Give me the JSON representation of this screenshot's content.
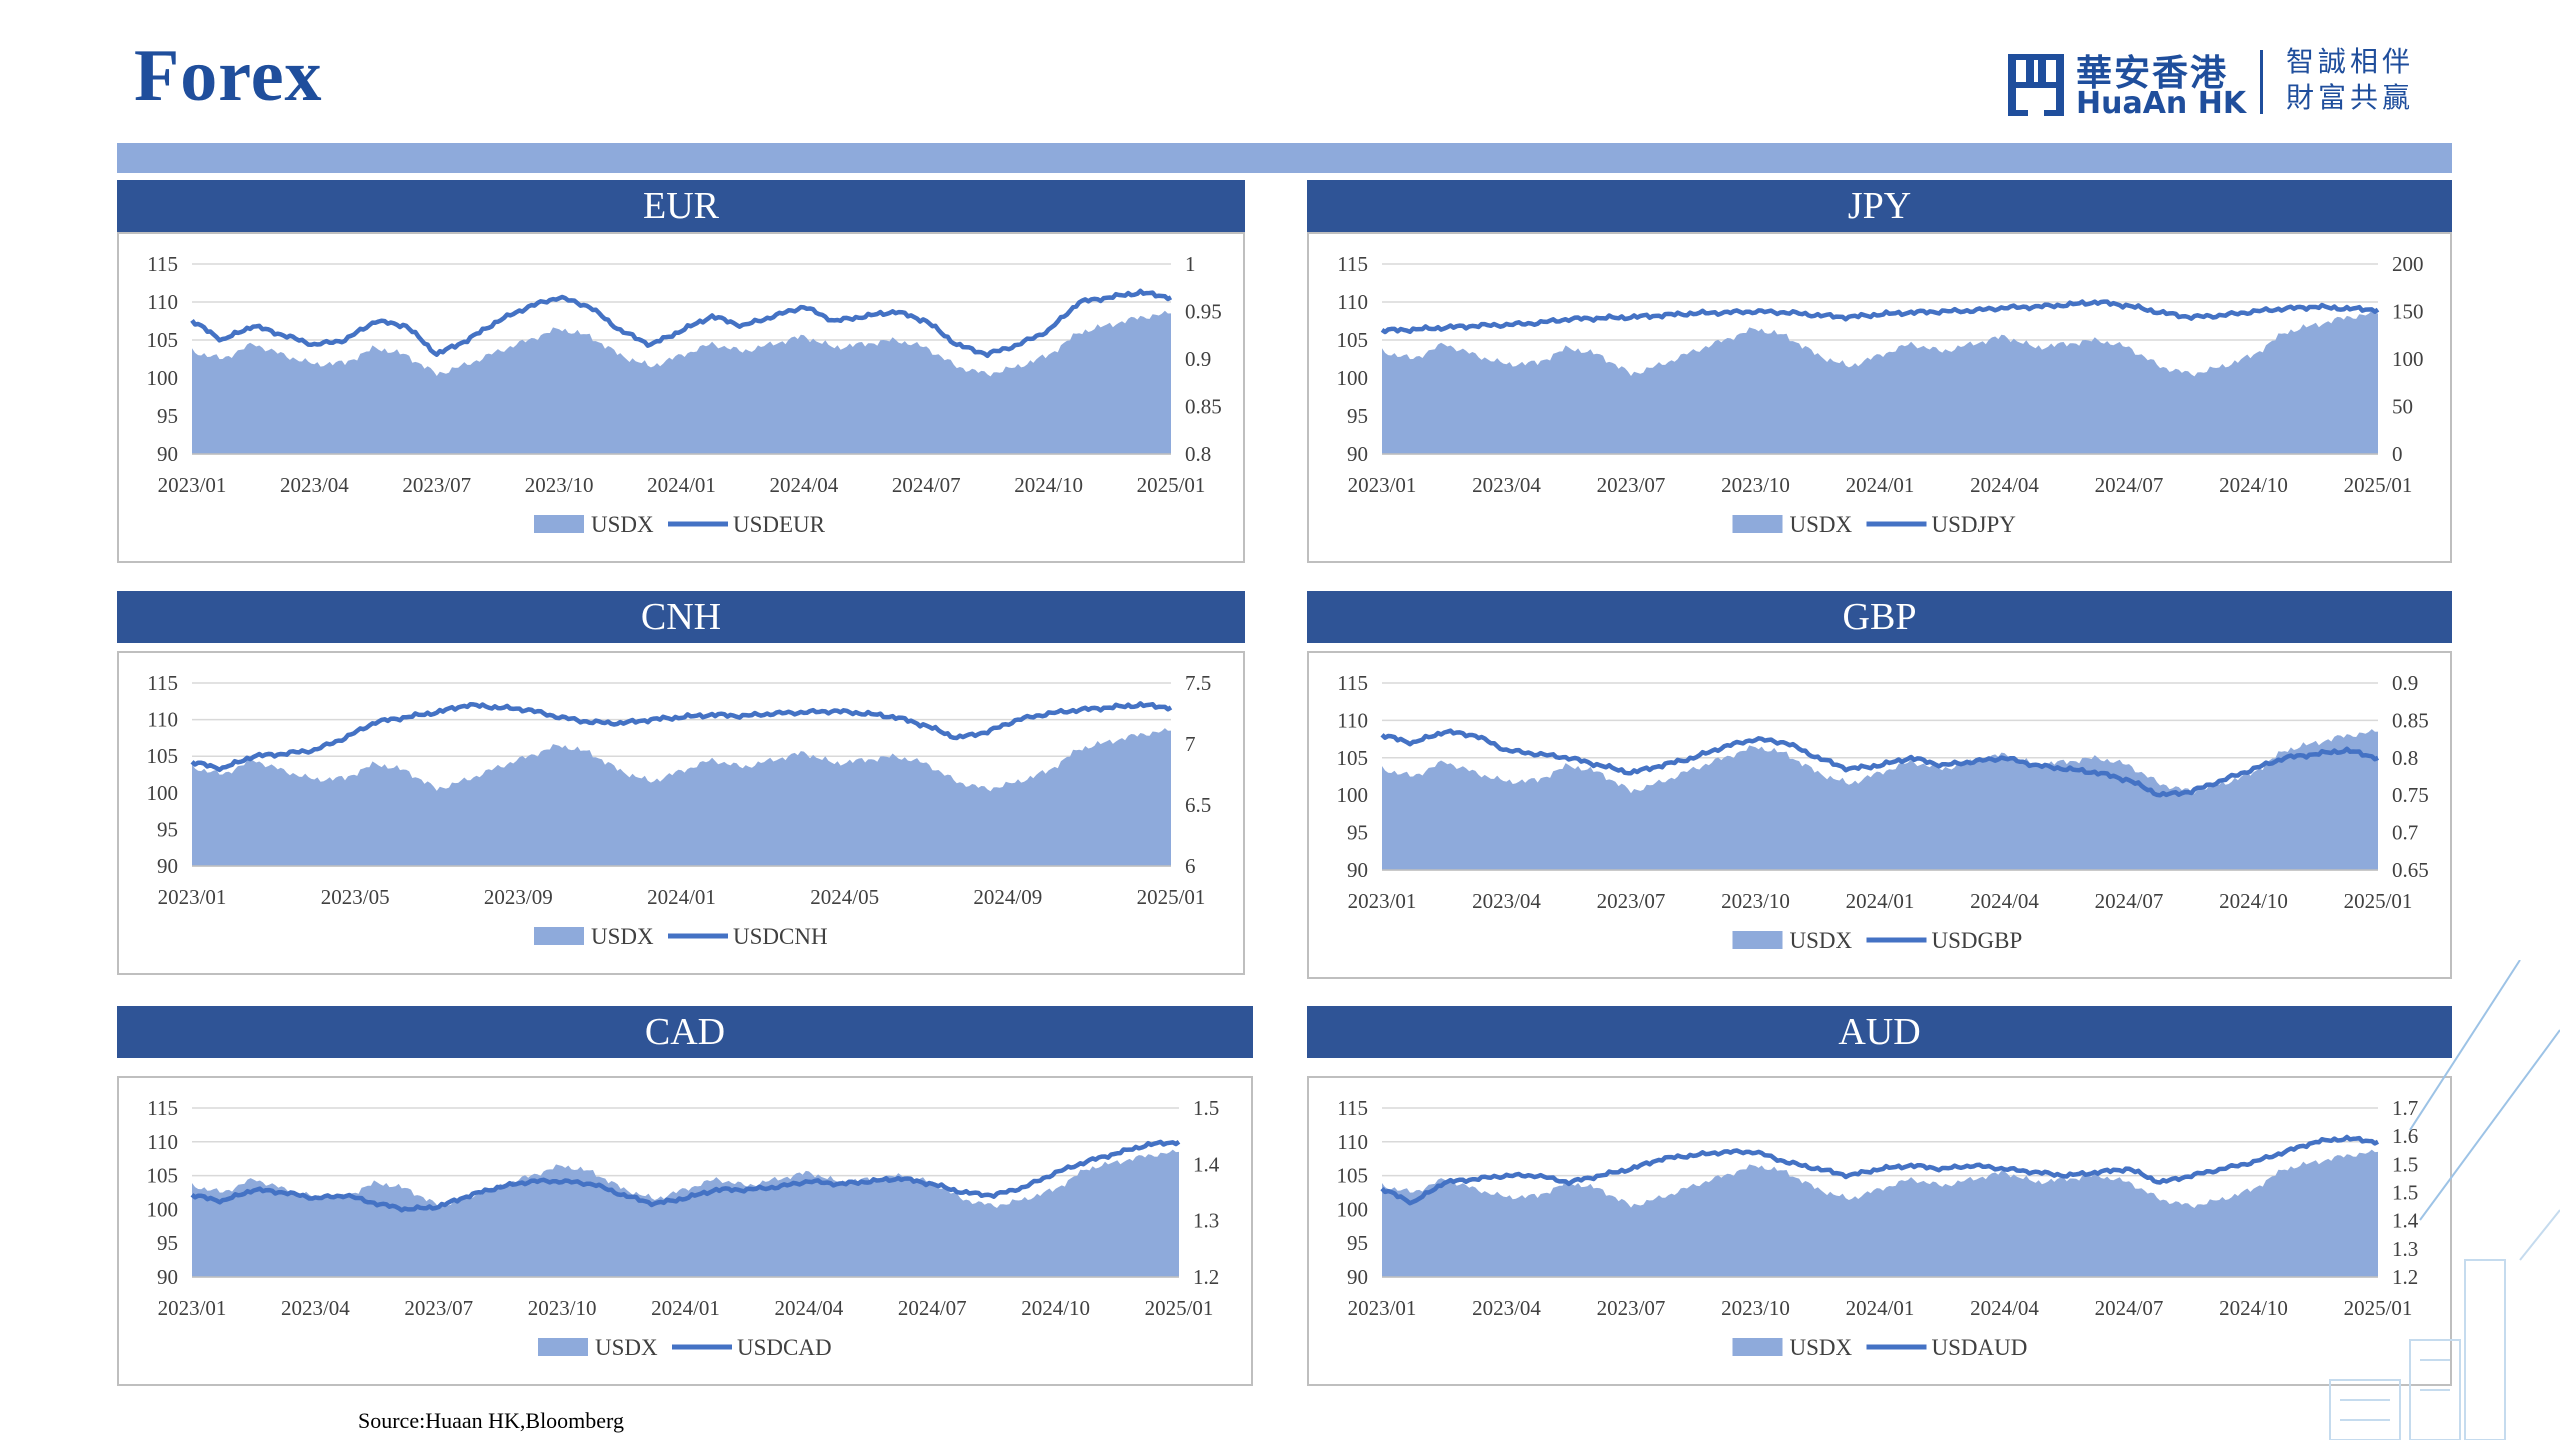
{
  "page": {
    "title": "Forex",
    "source": "Source:Huaan HK,Bloomberg"
  },
  "logo": {
    "chinese": "華安香港",
    "english": "HuaAn HK",
    "slogan_line1": "智誠相伴",
    "slogan_line2": "財富共贏",
    "icon": "huaan-logo-icon"
  },
  "colors": {
    "header": "#2f5496",
    "area": "#8eaadb",
    "line": "#4472c4",
    "title": "#1f4e9c",
    "topbar": "#8eaadb"
  },
  "chart_data": [
    {
      "id": "eur",
      "type": "area+line",
      "title": "EUR",
      "x_ticks": [
        "2023/01",
        "2023/04",
        "2023/07",
        "2023/10",
        "2024/01",
        "2024/04",
        "2024/07",
        "2024/10",
        "2025/01"
      ],
      "left_axis": {
        "ylim": [
          90,
          115
        ],
        "ticks": [
          90,
          95,
          100,
          105,
          110,
          115
        ]
      },
      "right_axis": {
        "ylim": [
          0.8,
          1
        ],
        "ticks": [
          "0.8",
          "0.85",
          "0.9",
          "0.95",
          "1"
        ]
      },
      "series": [
        {
          "name": "USDX",
          "kind": "area",
          "axis": "left",
          "values": [
            103.5,
            102.5,
            104.5,
            103.0,
            101.8,
            102.0,
            104.0,
            103.0,
            100.5,
            101.8,
            103.5,
            105.0,
            106.5,
            105.5,
            103.0,
            101.5,
            103.0,
            104.5,
            103.5,
            104.5,
            105.5,
            104.0,
            104.5,
            105.0,
            104.0,
            101.5,
            100.5,
            101.5,
            103.0,
            106.0,
            107.0,
            108.0,
            108.5
          ]
        },
        {
          "name": "USDEUR",
          "kind": "line",
          "axis": "right",
          "values": [
            0.94,
            0.92,
            0.935,
            0.925,
            0.915,
            0.92,
            0.94,
            0.935,
            0.905,
            0.92,
            0.94,
            0.955,
            0.965,
            0.955,
            0.93,
            0.915,
            0.93,
            0.945,
            0.935,
            0.945,
            0.955,
            0.94,
            0.945,
            0.95,
            0.94,
            0.915,
            0.905,
            0.915,
            0.93,
            0.96,
            0.965,
            0.97,
            0.965
          ]
        }
      ]
    },
    {
      "id": "jpy",
      "type": "area+line",
      "title": "JPY",
      "x_ticks": [
        "2023/01",
        "2023/04",
        "2023/07",
        "2023/10",
        "2024/01",
        "2024/04",
        "2024/07",
        "2024/10",
        "2025/01"
      ],
      "left_axis": {
        "ylim": [
          90,
          115
        ],
        "ticks": [
          90,
          95,
          100,
          105,
          110,
          115
        ]
      },
      "right_axis": {
        "ylim": [
          0,
          200
        ],
        "ticks": [
          "0",
          "50",
          "100",
          "150",
          "200"
        ]
      },
      "series": [
        {
          "name": "USDX",
          "kind": "area",
          "axis": "left",
          "values": [
            103.5,
            102.5,
            104.5,
            103.0,
            101.8,
            102.0,
            104.0,
            103.0,
            100.5,
            101.8,
            103.5,
            105.0,
            106.5,
            105.5,
            103.0,
            101.5,
            103.0,
            104.5,
            103.5,
            104.5,
            105.5,
            104.0,
            104.5,
            105.0,
            104.0,
            101.5,
            100.5,
            101.5,
            103.0,
            106.0,
            107.0,
            108.0,
            108.5
          ]
        },
        {
          "name": "USDJPY",
          "kind": "line",
          "axis": "right",
          "values": [
            130,
            131,
            133,
            135,
            136,
            138,
            142,
            143,
            144,
            146,
            148,
            149,
            150,
            149,
            146,
            144,
            147,
            149,
            150,
            151,
            154,
            155,
            157,
            160,
            156,
            149,
            144,
            146,
            150,
            153,
            155,
            153,
            152
          ]
        }
      ]
    },
    {
      "id": "cnh",
      "type": "area+line",
      "title": "CNH",
      "x_ticks": [
        "2023/01",
        "2023/05",
        "2023/09",
        "2024/01",
        "2024/05",
        "2024/09",
        "2025/01"
      ],
      "left_axis": {
        "ylim": [
          90,
          115
        ],
        "ticks": [
          90,
          95,
          100,
          105,
          110,
          115
        ]
      },
      "right_axis": {
        "ylim": [
          6,
          7.5
        ],
        "ticks": [
          "6",
          "6.5",
          "7",
          "7.5"
        ]
      },
      "series": [
        {
          "name": "USDX",
          "kind": "area",
          "axis": "left",
          "values": [
            103.5,
            102.5,
            104.5,
            103.0,
            101.8,
            102.0,
            104.0,
            103.0,
            100.5,
            101.8,
            103.5,
            105.0,
            106.5,
            105.5,
            103.0,
            101.5,
            103.0,
            104.5,
            103.5,
            104.5,
            105.5,
            104.0,
            104.5,
            105.0,
            104.0,
            101.5,
            100.5,
            101.5,
            103.0,
            106.0,
            107.0,
            108.0,
            108.5
          ]
        },
        {
          "name": "USDCNH",
          "kind": "line",
          "axis": "right",
          "values": [
            6.85,
            6.8,
            6.9,
            6.92,
            6.95,
            7.05,
            7.18,
            7.22,
            7.26,
            7.32,
            7.3,
            7.28,
            7.22,
            7.18,
            7.17,
            7.2,
            7.22,
            7.24,
            7.23,
            7.25,
            7.26,
            7.27,
            7.25,
            7.22,
            7.15,
            7.05,
            7.1,
            7.2,
            7.25,
            7.28,
            7.3,
            7.32,
            7.3
          ]
        }
      ]
    },
    {
      "id": "gbp",
      "type": "area+line",
      "title": "GBP",
      "x_ticks": [
        "2023/01",
        "2023/04",
        "2023/07",
        "2023/10",
        "2024/01",
        "2024/04",
        "2024/07",
        "2024/10",
        "2025/01"
      ],
      "left_axis": {
        "ylim": [
          90,
          115
        ],
        "ticks": [
          90,
          95,
          100,
          105,
          110,
          115
        ]
      },
      "right_axis": {
        "ylim": [
          0.65,
          0.9
        ],
        "ticks": [
          "0.65",
          "0.7",
          "0.75",
          "0.8",
          "0.85",
          "0.9"
        ]
      },
      "series": [
        {
          "name": "USDX",
          "kind": "area",
          "axis": "left",
          "values": [
            103.5,
            102.5,
            104.5,
            103.0,
            101.8,
            102.0,
            104.0,
            103.0,
            100.5,
            101.8,
            103.5,
            105.0,
            106.5,
            105.5,
            103.0,
            101.5,
            103.0,
            104.5,
            103.5,
            104.5,
            105.5,
            104.0,
            104.5,
            105.0,
            104.0,
            101.5,
            100.5,
            101.5,
            103.0,
            106.0,
            107.0,
            108.0,
            108.5
          ]
        },
        {
          "name": "USDGBP",
          "kind": "line",
          "axis": "right",
          "values": [
            0.83,
            0.82,
            0.835,
            0.83,
            0.81,
            0.805,
            0.8,
            0.79,
            0.78,
            0.79,
            0.8,
            0.815,
            0.825,
            0.82,
            0.8,
            0.785,
            0.79,
            0.8,
            0.79,
            0.795,
            0.8,
            0.79,
            0.785,
            0.78,
            0.77,
            0.75,
            0.755,
            0.77,
            0.785,
            0.8,
            0.805,
            0.81,
            0.8
          ]
        }
      ]
    },
    {
      "id": "cad",
      "type": "area+line",
      "title": "CAD",
      "x_ticks": [
        "2023/01",
        "2023/04",
        "2023/07",
        "2023/10",
        "2024/01",
        "2024/04",
        "2024/07",
        "2024/10",
        "2025/01"
      ],
      "left_axis": {
        "ylim": [
          90,
          115
        ],
        "ticks": [
          90,
          95,
          100,
          105,
          110,
          115
        ]
      },
      "right_axis": {
        "ylim": [
          1.2,
          1.5
        ],
        "ticks": [
          "1.2",
          "1.3",
          "1.4",
          "1.5"
        ]
      },
      "series": [
        {
          "name": "USDX",
          "kind": "area",
          "axis": "left",
          "values": [
            103.5,
            102.5,
            104.5,
            103.0,
            101.8,
            102.0,
            104.0,
            103.0,
            100.5,
            101.8,
            103.5,
            105.0,
            106.5,
            105.5,
            103.0,
            101.5,
            103.0,
            104.5,
            103.5,
            104.5,
            105.5,
            104.0,
            104.5,
            105.0,
            104.0,
            101.5,
            100.5,
            101.5,
            103.0,
            106.0,
            107.0,
            108.0,
            108.5
          ]
        },
        {
          "name": "USDCAD",
          "kind": "line",
          "axis": "right",
          "values": [
            1.345,
            1.335,
            1.355,
            1.35,
            1.34,
            1.345,
            1.33,
            1.32,
            1.325,
            1.345,
            1.36,
            1.37,
            1.37,
            1.365,
            1.345,
            1.33,
            1.34,
            1.355,
            1.355,
            1.36,
            1.37,
            1.365,
            1.37,
            1.375,
            1.365,
            1.35,
            1.345,
            1.36,
            1.385,
            1.405,
            1.42,
            1.435,
            1.44
          ]
        }
      ]
    },
    {
      "id": "aud",
      "type": "area+line",
      "title": "AUD",
      "x_ticks": [
        "2023/01",
        "2023/04",
        "2023/07",
        "2023/10",
        "2024/01",
        "2024/04",
        "2024/07",
        "2024/10",
        "2025/01"
      ],
      "left_axis": {
        "ylim": [
          90,
          115
        ],
        "ticks": [
          90,
          95,
          100,
          105,
          110,
          115
        ]
      },
      "right_axis": {
        "ylim": [
          1.2,
          1.7
        ],
        "ticks": [
          "1.2",
          "1.3",
          "1.4",
          "1.5",
          "1.5",
          "1.6",
          "1.7"
        ]
      },
      "series": [
        {
          "name": "USDX",
          "kind": "area",
          "axis": "left",
          "values": [
            103.5,
            102.5,
            104.5,
            103.0,
            101.8,
            102.0,
            104.0,
            103.0,
            100.5,
            101.8,
            103.5,
            105.0,
            106.5,
            105.5,
            103.0,
            101.5,
            103.0,
            104.5,
            103.5,
            104.5,
            105.5,
            104.0,
            104.5,
            105.0,
            104.0,
            101.5,
            100.5,
            101.5,
            103.0,
            106.0,
            107.0,
            108.0,
            108.5
          ]
        },
        {
          "name": "USDAUD",
          "kind": "line",
          "axis": "right",
          "values": [
            1.46,
            1.42,
            1.48,
            1.49,
            1.5,
            1.5,
            1.48,
            1.5,
            1.52,
            1.55,
            1.56,
            1.57,
            1.57,
            1.54,
            1.52,
            1.5,
            1.52,
            1.53,
            1.52,
            1.53,
            1.52,
            1.51,
            1.5,
            1.51,
            1.52,
            1.48,
            1.5,
            1.52,
            1.54,
            1.57,
            1.6,
            1.61,
            1.6
          ]
        }
      ]
    }
  ]
}
